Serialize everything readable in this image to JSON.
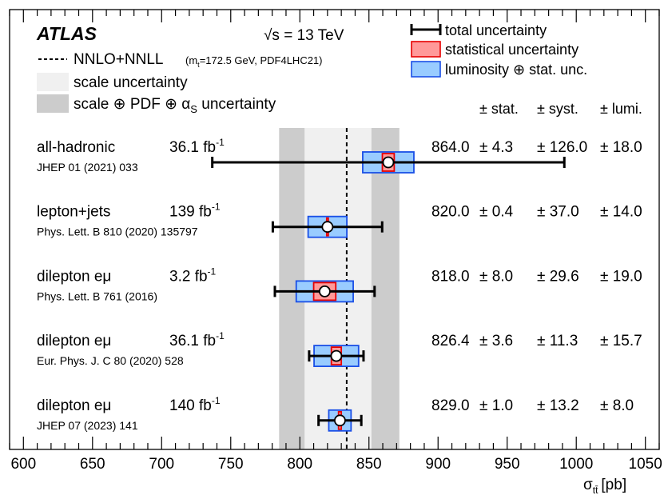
{
  "chart_data": {
    "type": "scatter",
    "experiment": "ATLAS",
    "energy_label": "√s = 13 TeV",
    "xlabel": "σ",
    "xlabel_sub": "tt̄",
    "xlabel_unit": "[pb]",
    "xlim": [
      590,
      1060
    ],
    "x_ticks": [
      600,
      650,
      700,
      750,
      800,
      850,
      900,
      950,
      1000,
      1050
    ],
    "theory": {
      "label": "NNLO+NNLL",
      "note_pre": "(m",
      "note_sub": "t",
      "note_post": "=172.5 GeV, PDF4LHC21)",
      "central": 833.9,
      "scale_band": [
        803.4,
        851.8
      ],
      "scale_pdf_band": [
        785.0,
        872.0
      ]
    },
    "legend": {
      "scale_label": "scale uncertainty",
      "scale_pdf_label": "scale ⊕ PDF ⊕ α",
      "scale_pdf_sub": "S",
      "scale_pdf_suffix": " uncertainty",
      "total_label": "total uncertainty",
      "stat_label": "statistical uncertainty",
      "lumi_label": "luminosity ⊕ stat. unc.",
      "placement": "top"
    },
    "column_headers": [
      "± stat.",
      "± syst.",
      "± lumi."
    ],
    "unit_label": "fb",
    "unit_sup": "-1",
    "colors": {
      "scale_band": "#f0f0f0",
      "scale_pdf_band": "#cccccc",
      "stat_fill": "#ff9999",
      "stat_stroke": "#e60000",
      "lumi_fill": "#99ccff",
      "lumi_stroke": "#1a4fe6"
    },
    "measurements": [
      {
        "channel": "all-hadronic",
        "lumi": "36.1",
        "ref": "JHEP 01 (2021) 033",
        "value": 864.0,
        "stat": 4.3,
        "syst": 126.0,
        "lumi_unc": 18.0,
        "value_text": "864.0",
        "stat_text": "± 4.3",
        "syst_text": "± 126.0",
        "lumi_text": "± 18.0"
      },
      {
        "channel": "lepton+jets",
        "lumi": "139",
        "ref": "Phys. Lett. B 810 (2020) 135797",
        "value": 820.0,
        "stat": 0.4,
        "syst": 37.0,
        "lumi_unc": 14.0,
        "value_text": "820.0",
        "stat_text": "± 0.4",
        "syst_text": "± 37.0",
        "lumi_text": "± 14.0"
      },
      {
        "channel": "dilepton eμ",
        "lumi": "3.2",
        "ref": "Phys. Lett. B 761 (2016)",
        "value": 818.0,
        "stat": 8.0,
        "syst": 29.6,
        "lumi_unc": 19.0,
        "value_text": "818.0",
        "stat_text": "± 8.0",
        "syst_text": "± 29.6",
        "lumi_text": "± 19.0"
      },
      {
        "channel": "dilepton eμ",
        "lumi": "36.1",
        "ref": "Eur. Phys. J. C 80 (2020) 528",
        "value": 826.4,
        "stat": 3.6,
        "syst": 11.3,
        "lumi_unc": 15.7,
        "value_text": "826.4",
        "stat_text": "± 3.6",
        "syst_text": "± 11.3",
        "lumi_text": "± 15.7"
      },
      {
        "channel": "dilepton eμ",
        "lumi": "140",
        "ref": "JHEP 07 (2023) 141",
        "value": 829.0,
        "stat": 1.0,
        "syst": 13.2,
        "lumi_unc": 8.0,
        "value_text": "829.0",
        "stat_text": "± 1.0",
        "syst_text": "± 13.2",
        "lumi_text": "± 8.0"
      }
    ]
  }
}
